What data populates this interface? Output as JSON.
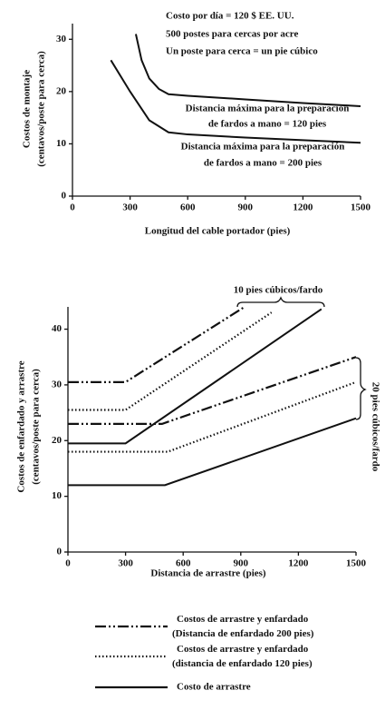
{
  "chart_data": [
    {
      "type": "line",
      "xlabel": "Longitud del cable portador (pies)",
      "ylabel": [
        "Costos de montaje",
        "(centavos/poste para cerca)"
      ],
      "xlim": [
        0,
        1500
      ],
      "xticks": [
        0,
        300,
        600,
        900,
        1200,
        1500
      ],
      "ylim": [
        0,
        33
      ],
      "yticks": [
        0,
        10,
        20,
        30
      ],
      "annotations": [
        "Costo por día = 120 $ EE. UU.",
        "500 postes para cercas por acre",
        "Un poste para cerca = un pie cúbico",
        "Distancia máxima para la preparación",
        "de fardos a mano = 120 pies",
        "Distancia máxima para la preparación",
        "de fardos a mano = 200 pies"
      ],
      "series": [
        {
          "color": "#111111",
          "style": "solid",
          "x": [
            330,
            360,
            400,
            450,
            500,
            600,
            900,
            1200,
            1500
          ],
          "values": [
            31,
            26,
            22.5,
            20.5,
            19.5,
            19.2,
            18.5,
            17.8,
            17.2
          ]
        },
        {
          "color": "#111111",
          "style": "solid",
          "x": [
            200,
            300,
            400,
            500,
            600,
            900,
            1200,
            1500
          ],
          "values": [
            26,
            20,
            14.5,
            12.2,
            11.8,
            11.2,
            10.7,
            10.2
          ]
        }
      ]
    },
    {
      "type": "line",
      "xlabel": "Distancia de arrastre (pies)",
      "ylabel": [
        "Costos de enfardado y arrastre",
        "(centavos/poste para cerca)"
      ],
      "xlim": [
        0,
        1500
      ],
      "xticks": [
        0,
        300,
        600,
        900,
        1200,
        1500
      ],
      "ylim": [
        0,
        44
      ],
      "yticks": [
        0,
        10,
        20,
        30,
        40
      ],
      "annotations": [
        "10 pies cúbicos/fardo",
        "20 pies cúbicos/fardo"
      ],
      "series": [
        {
          "name": "Costos de arrastre y enfardado (Distancia de enfardado 200 pies)",
          "color": "#111111",
          "style": "dashdot",
          "x": [
            0,
            300,
            920,
            null,
            0,
            490,
            1500
          ],
          "values": [
            30.5,
            30.5,
            44,
            null,
            23,
            23,
            35
          ]
        },
        {
          "name": "Costos de arrastre y enfardado (distancia de enfardado 120 pies)",
          "color": "#111111",
          "style": "dotted",
          "x": [
            0,
            300,
            1060,
            null,
            0,
            520,
            1500
          ],
          "values": [
            25.5,
            25.5,
            43,
            null,
            18,
            18,
            30.5
          ]
        },
        {
          "name": "Costo de arrastre",
          "color": "#111111",
          "style": "solid",
          "x": [
            0,
            300,
            1320,
            null,
            0,
            505,
            1500
          ],
          "values": [
            19.5,
            19.5,
            43.6,
            null,
            12,
            12,
            24
          ]
        }
      ]
    }
  ]
}
